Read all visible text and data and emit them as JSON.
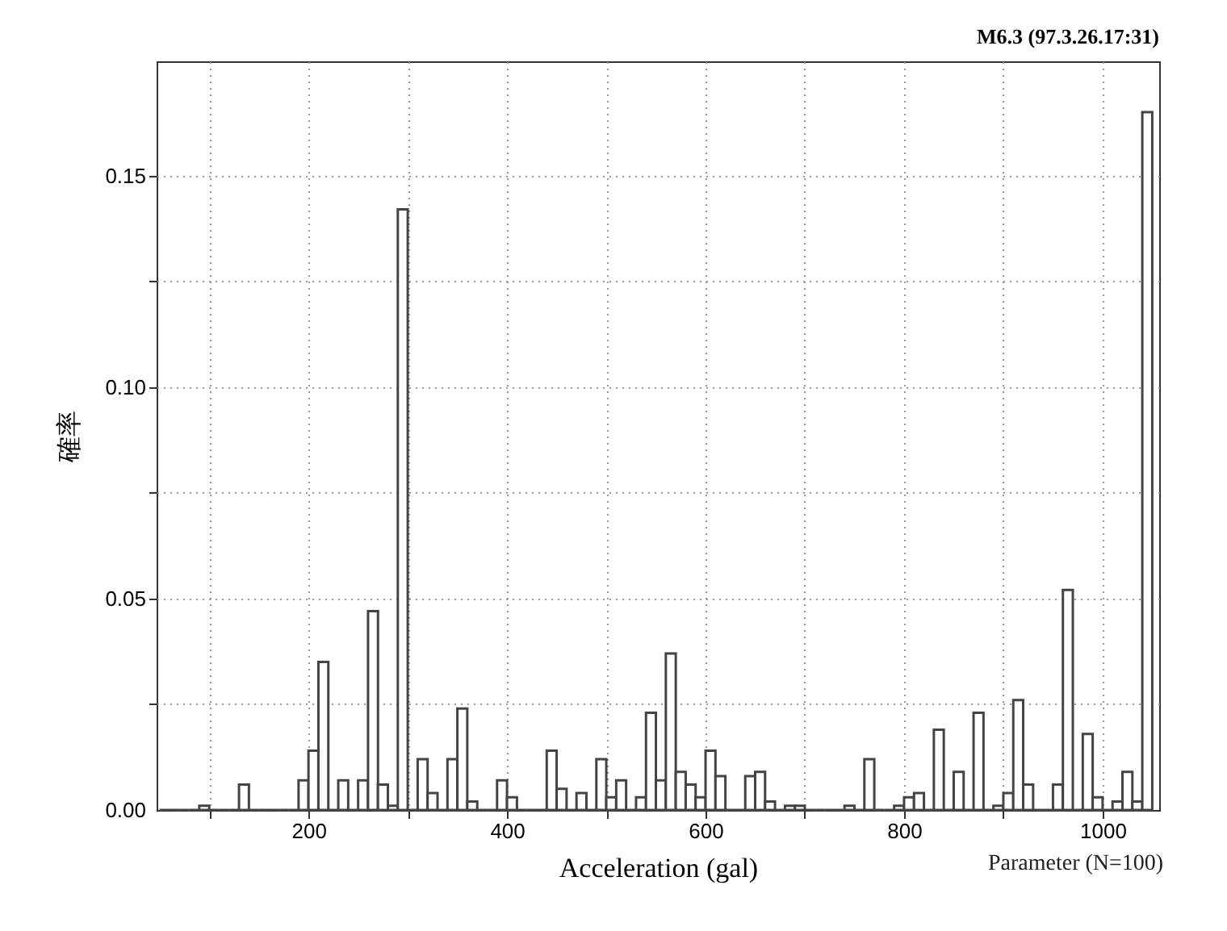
{
  "chart_data": {
    "type": "histogram",
    "title": "M6.3 (97.3.26.17:31)",
    "xlabel": "Acceleration (gal)",
    "ylabel": "確率",
    "annotations": [
      "Parameter (N=100)"
    ],
    "bins": [
      50,
      60,
      70,
      80,
      90,
      100,
      110,
      120,
      130,
      140,
      150,
      160,
      170,
      180,
      190,
      200,
      210,
      220,
      230,
      240,
      250,
      260,
      270,
      280,
      290,
      300,
      310,
      320,
      330,
      340,
      350,
      360,
      370,
      380,
      390,
      400,
      410,
      420,
      430,
      440,
      450,
      460,
      470,
      480,
      490,
      500,
      510,
      520,
      530,
      540,
      550,
      560,
      570,
      580,
      590,
      600,
      610,
      620,
      630,
      640,
      650,
      660,
      670,
      680,
      690,
      700,
      710,
      720,
      730,
      740,
      750,
      760,
      770,
      780,
      790,
      800,
      810,
      820,
      830,
      840,
      850,
      860,
      870,
      880,
      890,
      900,
      910,
      920,
      930,
      940,
      950,
      960,
      970,
      980,
      990,
      1000,
      1010,
      1020,
      1030,
      1040,
      1050
    ],
    "values": [
      0,
      0,
      0,
      0,
      0.001,
      0,
      0,
      0,
      0.006,
      0,
      0,
      0,
      0,
      0,
      0.007,
      0.014,
      0.035,
      0,
      0.007,
      0,
      0.007,
      0.047,
      0.006,
      0.001,
      0.142,
      0,
      0.012,
      0.004,
      0,
      0.012,
      0.024,
      0.002,
      0,
      0,
      0.007,
      0.003,
      0,
      0,
      0,
      0.014,
      0.005,
      0,
      0.004,
      0,
      0.012,
      0.003,
      0.007,
      0,
      0.003,
      0.023,
      0.007,
      0.037,
      0.009,
      0.006,
      0.003,
      0.014,
      0.008,
      0,
      0,
      0.008,
      0.009,
      0.002,
      0,
      0.001,
      0.001,
      0,
      0,
      0,
      0,
      0.001,
      0,
      0.012,
      0,
      0,
      0.001,
      0.003,
      0.004,
      0,
      0.019,
      0,
      0.009,
      0,
      0.023,
      0,
      0.001,
      0.004,
      0.026,
      0.006,
      0,
      0,
      0.006,
      0.052,
      0,
      0.018,
      0.003,
      0,
      0.002,
      0.009,
      0.002,
      0.165
    ],
    "color": "#444444",
    "xlim": [
      47,
      1057
    ],
    "xticks": [
      {
        "value": 100,
        "label": null
      },
      200,
      {
        "value": 300,
        "label": null
      },
      400,
      {
        "value": 500,
        "label": null
      },
      600,
      {
        "value": 700,
        "label": null
      },
      800,
      {
        "value": 900,
        "label": null
      },
      1000
    ],
    "ylim": [
      0,
      0.177
    ],
    "yticks": [
      {
        "value": 0,
        "label": "0.00"
      },
      {
        "value": 0.025,
        "label": null
      },
      {
        "value": 0.05,
        "label": "0.05"
      },
      {
        "value": 0.075,
        "label": null
      },
      {
        "value": 0.1,
        "label": "0.10"
      },
      {
        "value": 0.125,
        "label": null
      },
      {
        "value": 0.15,
        "label": "0.15"
      }
    ],
    "grid": true
  }
}
